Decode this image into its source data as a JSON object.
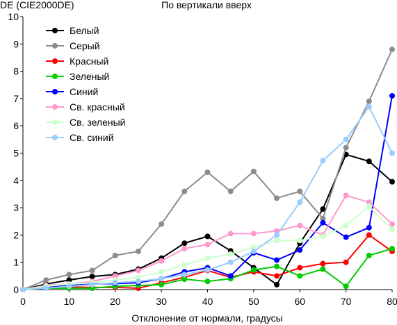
{
  "chart_data": {
    "type": "line",
    "title": "По вертикали вверх",
    "ylabel": "DE (CIE2000DE)",
    "xlabel": "Отклонение от нормали, градусы",
    "xlim": [
      0,
      80
    ],
    "ylim": [
      0,
      10
    ],
    "x_ticks": [
      "0",
      "10",
      "20",
      "30",
      "40",
      "50",
      "60",
      "70",
      "80"
    ],
    "y_ticks": [
      "0",
      "1",
      "2",
      "3",
      "4",
      "5",
      "6",
      "7",
      "8",
      "9",
      "10"
    ],
    "legend_position": "top-left",
    "grid": false,
    "x": [
      0,
      5,
      10,
      15,
      20,
      25,
      30,
      35,
      40,
      45,
      50,
      55,
      60,
      65,
      70,
      75,
      80
    ],
    "series": [
      {
        "name": "Белый",
        "color": "#000000",
        "values": [
          0,
          0.2,
          0.35,
          0.48,
          0.55,
          0.75,
          1.15,
          1.7,
          1.95,
          1.42,
          0.8,
          0.18,
          1.7,
          2.95,
          4.95,
          4.7,
          3.95
        ]
      },
      {
        "name": "Серый",
        "color": "#8c8c8c",
        "values": [
          0,
          0.35,
          0.55,
          0.7,
          1.25,
          1.4,
          2.4,
          3.6,
          4.3,
          3.6,
          4.33,
          3.35,
          3.6,
          2.6,
          5.2,
          6.9,
          8.8
        ]
      },
      {
        "name": "Красный",
        "color": "#ff0000",
        "values": [
          0,
          0.1,
          0.1,
          0.08,
          0.08,
          0.05,
          0.25,
          0.45,
          0.7,
          0.45,
          0.65,
          0.5,
          0.8,
          0.95,
          1.0,
          2.0,
          1.4
        ]
      },
      {
        "name": "Зеленый",
        "color": "#00cc00",
        "values": [
          0,
          0.05,
          0.05,
          0.05,
          0.12,
          0.15,
          0.18,
          0.38,
          0.3,
          0.4,
          0.72,
          0.85,
          0.5,
          0.75,
          0.12,
          1.25,
          1.5
        ]
      },
      {
        "name": "Синий",
        "color": "#0000ff",
        "values": [
          0,
          0.1,
          0.15,
          0.2,
          0.22,
          0.25,
          0.4,
          0.65,
          0.8,
          0.5,
          1.35,
          1.08,
          1.45,
          2.45,
          1.92,
          2.27,
          7.1
        ]
      },
      {
        "name": "Св. красный",
        "color": "#ff99cc",
        "values": [
          0,
          0.15,
          0.2,
          0.3,
          0.5,
          0.7,
          1.05,
          1.5,
          1.65,
          2.05,
          2.05,
          2.15,
          2.35,
          2.0,
          3.45,
          3.2,
          2.4
        ]
      },
      {
        "name": "Св. зеленый",
        "color": "#ccffcc",
        "values": [
          0,
          0.12,
          0.2,
          0.25,
          0.35,
          0.45,
          0.65,
          0.9,
          1.15,
          1.3,
          1.55,
          1.8,
          1.8,
          1.95,
          2.35,
          3.05,
          2.2
        ]
      },
      {
        "name": "Св. синий",
        "color": "#99ccff",
        "values": [
          0,
          0.05,
          0.12,
          0.18,
          0.25,
          0.3,
          0.4,
          0.55,
          0.72,
          1.0,
          1.4,
          2.0,
          3.2,
          4.72,
          5.5,
          6.7,
          5.0
        ]
      }
    ]
  }
}
